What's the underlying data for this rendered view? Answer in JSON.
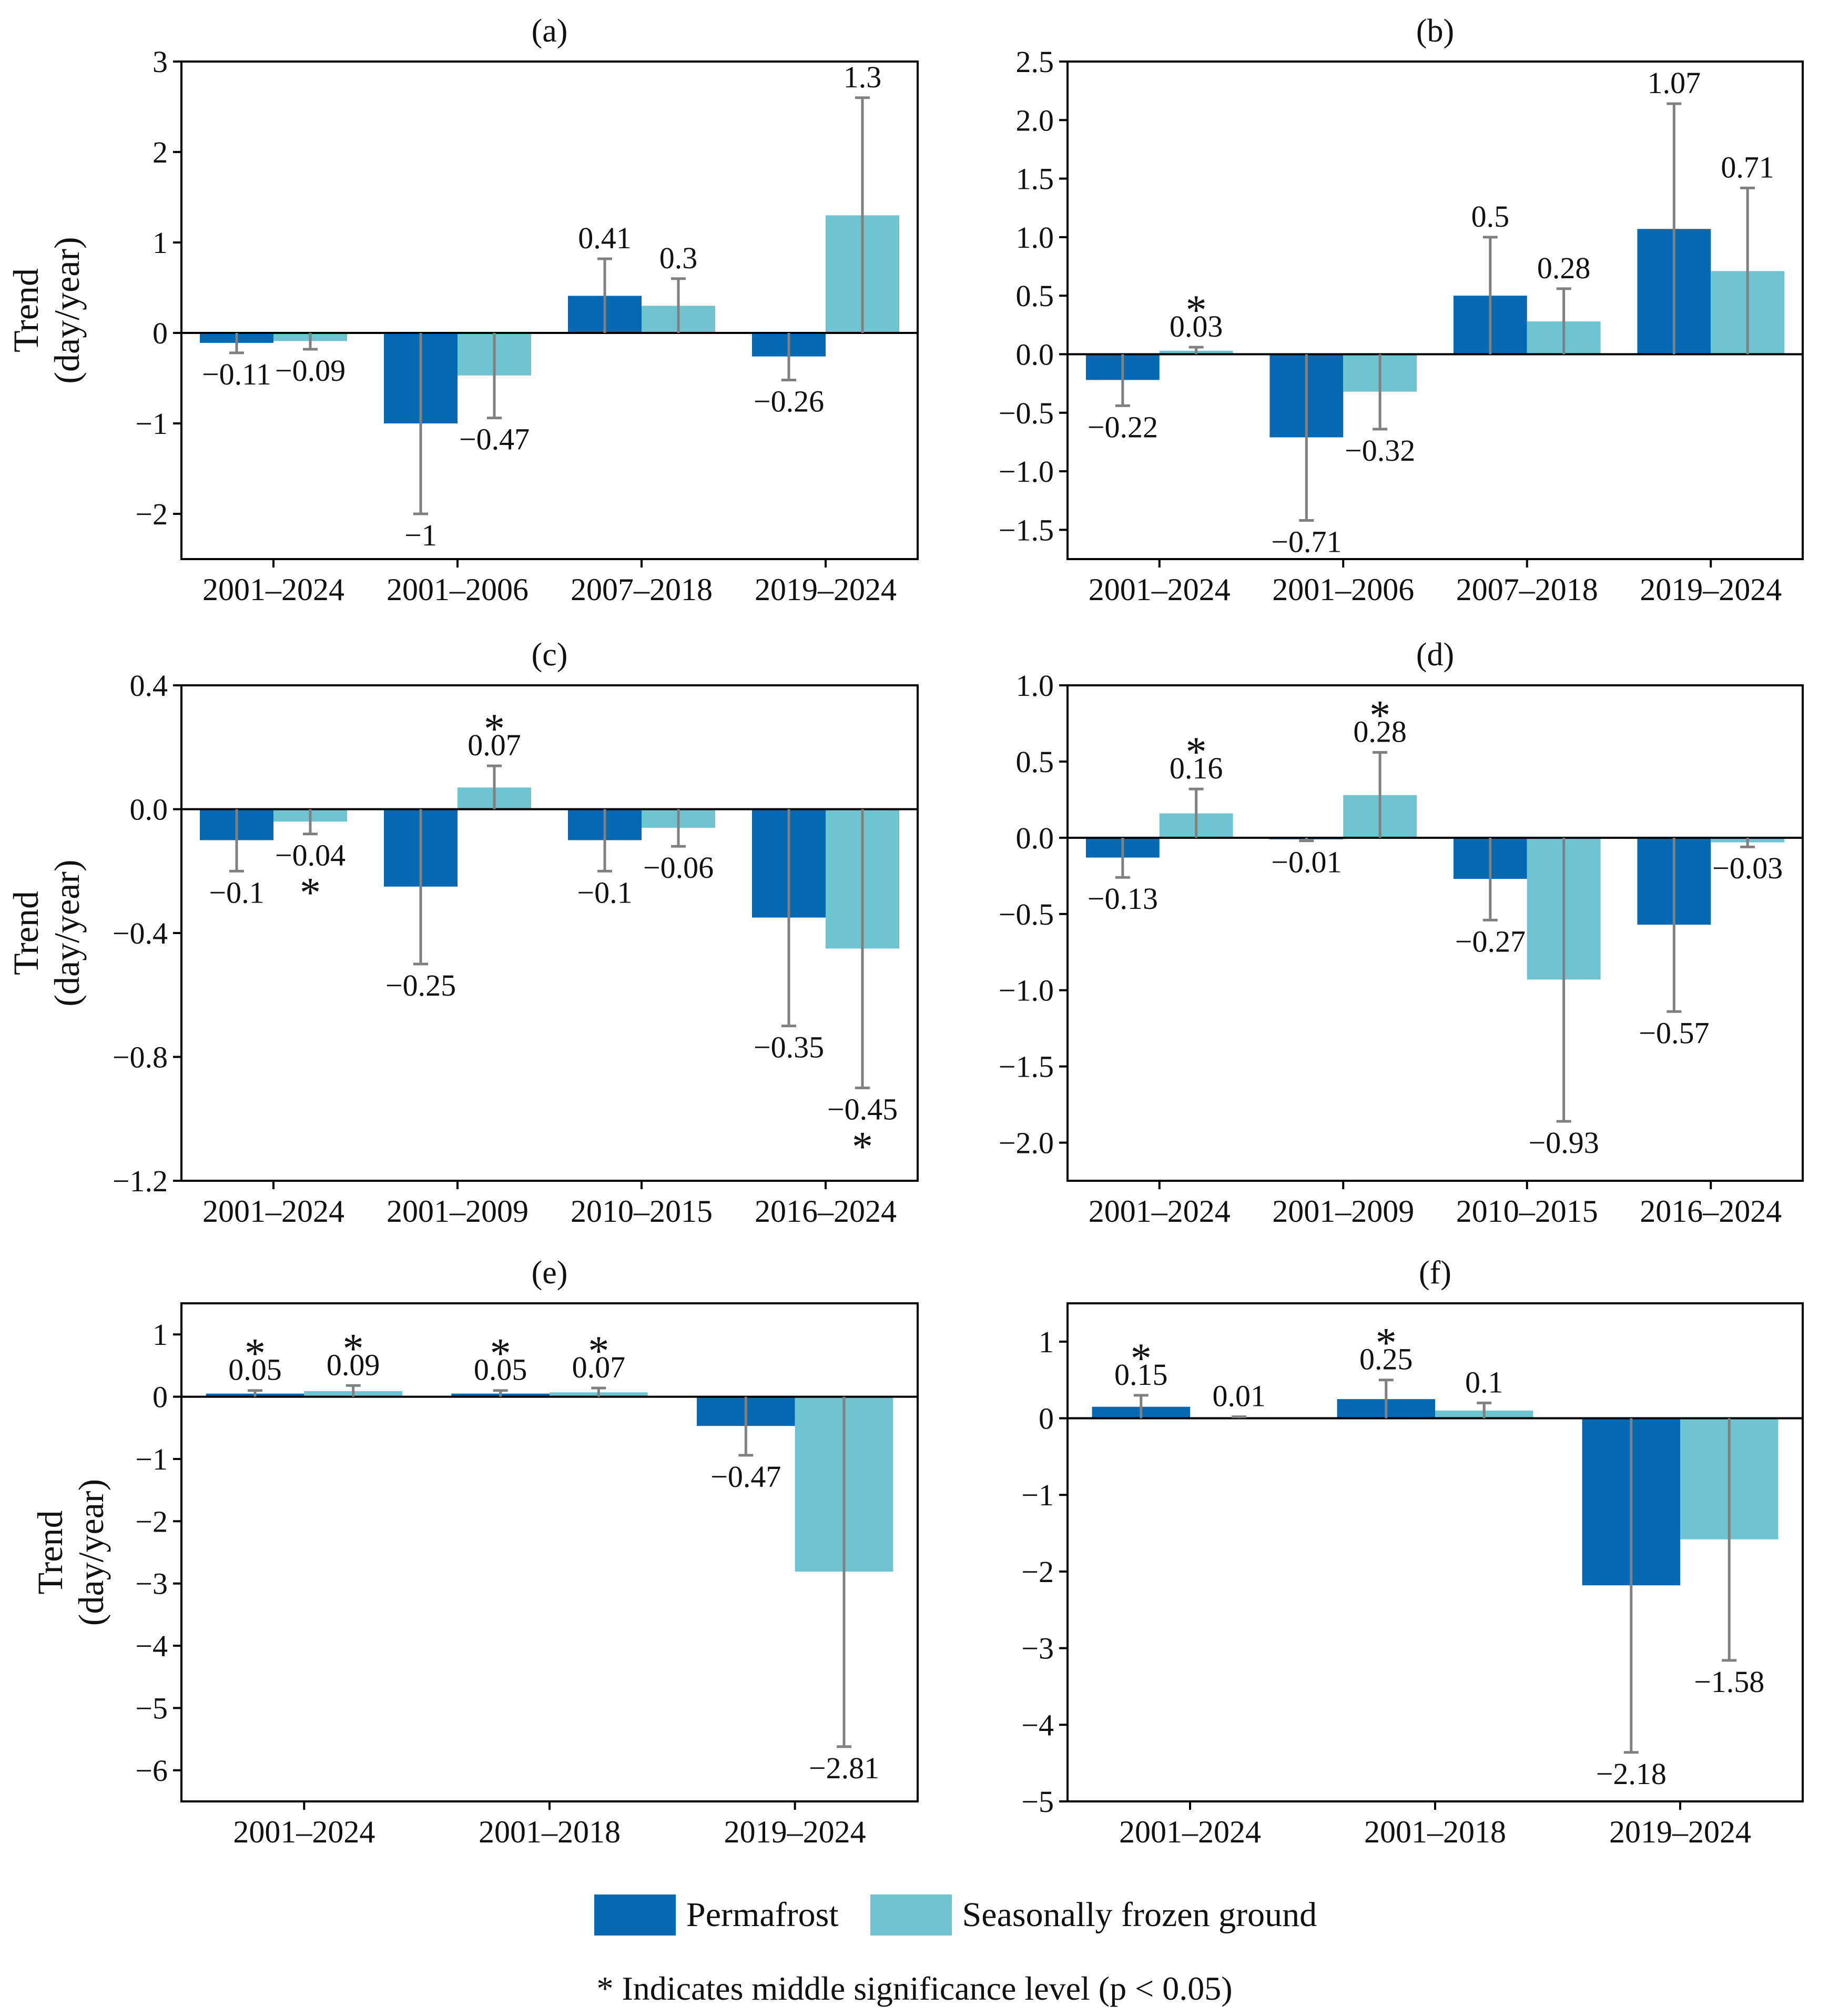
{
  "colors": {
    "permafrost": "#0568b3",
    "seasonal": "#6ec4d0",
    "error_bar": "#808080",
    "axis": "#000000"
  },
  "legend": {
    "permafrost": "Permafrost",
    "seasonal": "Seasonally frozen ground"
  },
  "footnote": "* Indicates middle significance level (p < 0.05)",
  "chart_data": [
    {
      "panel": "(a)",
      "type": "bar",
      "ylabel": "Trend\n(day/year)",
      "ylim": [
        -2.5,
        3
      ],
      "yticks": [
        -2,
        -1,
        0,
        1,
        2,
        3
      ],
      "ytick_labels": [
        "−2",
        "−1",
        "0",
        "1",
        "2",
        "3"
      ],
      "categories": [
        "2001–2024",
        "2001–2006",
        "2007–2018",
        "2019–2024"
      ],
      "series": [
        {
          "name": "Permafrost",
          "values": [
            -0.11,
            -1,
            0.41,
            -0.26
          ],
          "labels": [
            "−0.11",
            "−1",
            "0.41",
            "−0.26"
          ],
          "errors": [
            0.11,
            1.0,
            0.41,
            0.26
          ],
          "sig": [
            false,
            false,
            false,
            false
          ]
        },
        {
          "name": "Seasonally frozen ground",
          "values": [
            -0.09,
            -0.47,
            0.3,
            1.3
          ],
          "labels": [
            "−0.09",
            "−0.47",
            "0.3",
            "1.3"
          ],
          "errors": [
            0.09,
            0.47,
            0.3,
            1.3
          ],
          "sig": [
            false,
            false,
            false,
            false
          ]
        }
      ]
    },
    {
      "panel": "(b)",
      "type": "bar",
      "ylabel": "",
      "ylim": [
        -1.75,
        2.5
      ],
      "yticks": [
        -1.5,
        -1.0,
        -0.5,
        0.0,
        0.5,
        1.0,
        1.5,
        2.0,
        2.5
      ],
      "ytick_labels": [
        "−1.5",
        "−1.0",
        "−0.5",
        "0.0",
        "0.5",
        "1.0",
        "1.5",
        "2.0",
        "2.5"
      ],
      "categories": [
        "2001–2024",
        "2001–2006",
        "2007–2018",
        "2019–2024"
      ],
      "series": [
        {
          "name": "Permafrost",
          "values": [
            -0.22,
            -0.71,
            0.5,
            1.07
          ],
          "labels": [
            "−0.22",
            "−0.71",
            "0.5",
            "1.07"
          ],
          "errors": [
            0.22,
            0.71,
            0.5,
            1.07
          ],
          "sig": [
            false,
            false,
            false,
            false
          ]
        },
        {
          "name": "Seasonally frozen ground",
          "values": [
            0.03,
            -0.32,
            0.28,
            0.71
          ],
          "labels": [
            "0.03",
            "−0.32",
            "0.28",
            "0.71"
          ],
          "errors": [
            0.03,
            0.32,
            0.28,
            0.71
          ],
          "sig": [
            true,
            false,
            false,
            false
          ]
        }
      ]
    },
    {
      "panel": "(c)",
      "type": "bar",
      "ylabel": "Trend\n(day/year)",
      "ylim": [
        -1.2,
        0.4
      ],
      "yticks": [
        -1.2,
        -0.8,
        -0.4,
        0.0,
        0.4
      ],
      "ytick_labels": [
        "−1.2",
        "−0.8",
        "−0.4",
        "0.0",
        "0.4"
      ],
      "categories": [
        "2001–2024",
        "2001–2009",
        "2010–2015",
        "2016–2024"
      ],
      "series": [
        {
          "name": "Permafrost",
          "values": [
            -0.1,
            -0.25,
            -0.1,
            -0.35
          ],
          "labels": [
            "−0.1",
            "−0.25",
            "−0.1",
            "−0.35"
          ],
          "errors": [
            0.1,
            0.25,
            0.1,
            0.35
          ],
          "sig": [
            false,
            false,
            false,
            false
          ]
        },
        {
          "name": "Seasonally frozen ground",
          "values": [
            -0.04,
            0.07,
            -0.06,
            -0.45
          ],
          "labels": [
            "−0.04",
            "0.07",
            "−0.06",
            "−0.45"
          ],
          "errors": [
            0.04,
            0.07,
            0.06,
            0.45
          ],
          "sig": [
            true,
            true,
            false,
            true
          ]
        }
      ]
    },
    {
      "panel": "(d)",
      "type": "bar",
      "ylabel": "",
      "ylim": [
        -2.25,
        1.0
      ],
      "yticks": [
        -2.0,
        -1.5,
        -1.0,
        -0.5,
        0.0,
        0.5,
        1.0
      ],
      "ytick_labels": [
        "−2.0",
        "−1.5",
        "−1.0",
        "−0.5",
        "0.0",
        "0.5",
        "1.0"
      ],
      "categories": [
        "2001–2024",
        "2001–2009",
        "2010–2015",
        "2016–2024"
      ],
      "series": [
        {
          "name": "Permafrost",
          "values": [
            -0.13,
            -0.01,
            -0.27,
            -0.57
          ],
          "labels": [
            "−0.13",
            "−0.01",
            "−0.27",
            "−0.57"
          ],
          "errors": [
            0.13,
            0.01,
            0.27,
            0.57
          ],
          "sig": [
            false,
            false,
            false,
            false
          ]
        },
        {
          "name": "Seasonally frozen ground",
          "values": [
            0.16,
            0.28,
            -0.93,
            -0.03
          ],
          "labels": [
            "0.16",
            "0.28",
            "−0.93",
            "−0.03"
          ],
          "errors": [
            0.16,
            0.28,
            0.93,
            0.03
          ],
          "sig": [
            true,
            true,
            false,
            false
          ]
        }
      ]
    },
    {
      "panel": "(e)",
      "type": "bar",
      "ylabel": "Trend\n(day/year)",
      "ylim": [
        -6.5,
        1.5
      ],
      "yticks": [
        -6,
        -5,
        -4,
        -3,
        -2,
        -1,
        0,
        1
      ],
      "ytick_labels": [
        "−6",
        "−5",
        "−4",
        "−3",
        "−2",
        "−1",
        "0",
        "1"
      ],
      "categories": [
        "2001–2024",
        "2001–2018",
        "2019–2024"
      ],
      "series": [
        {
          "name": "Permafrost",
          "values": [
            0.05,
            0.05,
            -0.47
          ],
          "labels": [
            "0.05",
            "0.05",
            "−0.47"
          ],
          "errors": [
            0.05,
            0.05,
            0.47
          ],
          "sig": [
            true,
            true,
            false
          ]
        },
        {
          "name": "Seasonally frozen ground",
          "values": [
            0.09,
            0.07,
            -2.81
          ],
          "labels": [
            "0.09",
            "0.07",
            "−2.81"
          ],
          "errors": [
            0.09,
            0.07,
            2.81
          ],
          "sig": [
            true,
            true,
            false
          ]
        }
      ]
    },
    {
      "panel": "(f)",
      "type": "bar",
      "ylabel": "",
      "ylim": [
        -5,
        1.5
      ],
      "yticks": [
        -5,
        -4,
        -3,
        -2,
        -1,
        0,
        1
      ],
      "ytick_labels": [
        "−5",
        "−4",
        "−3",
        "−2",
        "−1",
        "0",
        "1"
      ],
      "categories": [
        "2001–2024",
        "2001–2018",
        "2019–2024"
      ],
      "series": [
        {
          "name": "Permafrost",
          "values": [
            0.15,
            0.25,
            -2.18
          ],
          "labels": [
            "0.15",
            "0.25",
            "−2.18"
          ],
          "errors": [
            0.15,
            0.25,
            2.18
          ],
          "sig": [
            true,
            true,
            false
          ]
        },
        {
          "name": "Seasonally frozen ground",
          "values": [
            0.01,
            0.1,
            -1.58
          ],
          "labels": [
            "0.01",
            "0.1",
            "−1.58"
          ],
          "errors": [
            0.01,
            0.1,
            1.58
          ],
          "sig": [
            false,
            false,
            false
          ]
        }
      ]
    }
  ]
}
